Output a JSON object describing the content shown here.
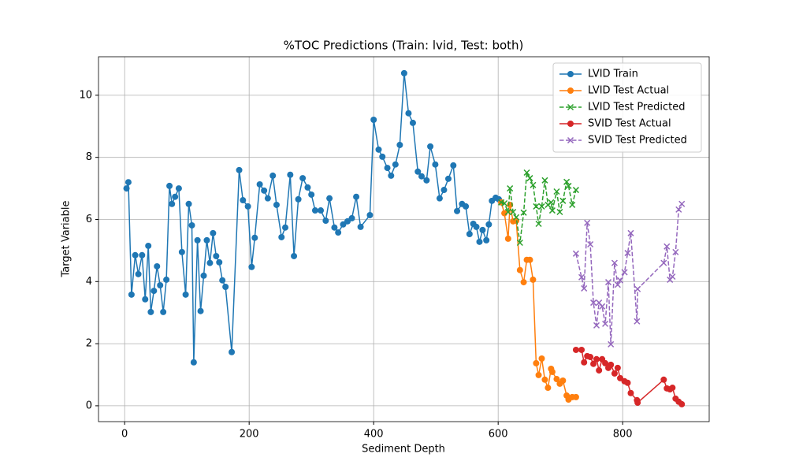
{
  "chart_data": {
    "type": "line",
    "title": "%TOC Predictions (Train: lvid, Test: both)",
    "xlabel": "Sediment Depth",
    "ylabel": "Target Variable",
    "xlim": [
      -42,
      939
    ],
    "ylim": [
      -0.51,
      11.24
    ],
    "xticks": [
      0,
      200,
      400,
      600,
      800
    ],
    "yticks": [
      0,
      2,
      4,
      6,
      8,
      10
    ],
    "grid": true,
    "legend": "upper right",
    "series": [
      {
        "name": "LVID Train",
        "color": "#1f77b4",
        "linestyle": "solid",
        "marker": "o",
        "x": [
          3,
          6,
          11,
          17,
          22,
          28,
          33,
          38,
          42,
          47,
          52,
          57,
          62,
          67,
          72,
          76,
          81,
          87,
          92,
          98,
          103,
          108,
          111,
          117,
          122,
          127,
          132,
          137,
          142,
          147,
          152,
          157,
          162,
          172,
          184,
          190,
          198,
          204,
          209,
          217,
          224,
          230,
          238,
          244,
          252,
          258,
          266,
          272,
          279,
          286,
          294,
          300,
          306,
          315,
          323,
          329,
          337,
          343,
          351,
          358,
          365,
          372,
          379,
          394,
          400,
          408,
          414,
          422,
          428,
          435,
          442,
          449,
          456,
          463,
          471,
          477,
          485,
          491,
          499,
          506,
          513,
          520,
          528,
          534,
          542,
          548,
          554,
          560,
          565,
          570,
          575,
          581,
          585,
          590,
          596,
          601
        ],
        "values": [
          7.0,
          7.2,
          3.58,
          4.85,
          4.24,
          4.85,
          3.43,
          5.15,
          3.02,
          3.7,
          4.49,
          3.88,
          3.02,
          4.06,
          7.08,
          6.5,
          6.73,
          7.0,
          4.95,
          3.58,
          6.5,
          5.81,
          1.4,
          5.33,
          3.05,
          4.19,
          5.33,
          4.6,
          5.56,
          4.82,
          4.62,
          4.04,
          3.83,
          1.73,
          7.59,
          6.62,
          6.42,
          4.47,
          5.41,
          7.13,
          6.93,
          6.68,
          7.41,
          6.47,
          5.43,
          5.74,
          7.44,
          4.82,
          6.65,
          7.33,
          7.03,
          6.8,
          6.29,
          6.29,
          5.96,
          6.68,
          5.74,
          5.58,
          5.84,
          5.94,
          6.04,
          6.73,
          5.76,
          6.14,
          9.21,
          8.25,
          8.02,
          7.66,
          7.41,
          7.77,
          8.4,
          10.71,
          9.42,
          9.11,
          7.54,
          7.39,
          7.26,
          8.35,
          7.77,
          6.68,
          6.95,
          7.31,
          7.74,
          6.27,
          6.5,
          6.42,
          5.53,
          5.86,
          5.76,
          5.28,
          5.66,
          5.33,
          5.84,
          6.6,
          6.7,
          6.65
        ]
      },
      {
        "name": "LVID Test Actual",
        "color": "#ff7f0e",
        "linestyle": "solid",
        "marker": "o",
        "x": [
          605,
          610,
          616,
          619,
          624,
          629,
          635,
          641,
          646,
          651,
          656,
          661,
          665,
          670,
          675,
          680,
          685,
          687,
          694,
          699,
          704,
          710,
          713,
          719,
          725
        ],
        "values": [
          6.55,
          6.2,
          5.38,
          6.47,
          5.94,
          5.96,
          4.37,
          3.98,
          4.7,
          4.7,
          4.06,
          1.37,
          0.99,
          1.52,
          0.84,
          0.58,
          1.19,
          1.09,
          0.86,
          0.71,
          0.81,
          0.33,
          0.2,
          0.28,
          0.28
        ]
      },
      {
        "name": "LVID Test Predicted",
        "color": "#2ca02c",
        "linestyle": "dashed",
        "marker": "x",
        "x": [
          605,
          610,
          616,
          619,
          624,
          629,
          635,
          641,
          646,
          651,
          656,
          661,
          665,
          670,
          675,
          680,
          685,
          687,
          694,
          699,
          704,
          710,
          713,
          719,
          725
        ],
        "values": [
          6.55,
          6.52,
          6.24,
          7.0,
          6.24,
          6.07,
          5.25,
          6.22,
          7.51,
          7.33,
          7.11,
          6.42,
          5.86,
          6.42,
          7.26,
          6.47,
          6.55,
          6.29,
          6.9,
          6.24,
          6.6,
          7.21,
          7.08,
          6.47,
          6.95
        ]
      },
      {
        "name": "SVID Test Actual",
        "color": "#d62728",
        "linestyle": "solid",
        "marker": "o",
        "x": [
          725,
          734,
          738,
          743,
          748,
          753,
          758,
          762,
          767,
          772,
          777,
          781,
          787,
          792,
          796,
          803,
          808,
          813,
          823,
          824,
          866,
          871,
          876,
          880,
          885,
          890,
          895
        ],
        "values": [
          1.8,
          1.8,
          1.4,
          1.6,
          1.57,
          1.35,
          1.5,
          1.14,
          1.5,
          1.37,
          1.22,
          1.32,
          1.04,
          1.22,
          0.89,
          0.79,
          0.74,
          0.41,
          0.18,
          0.1,
          0.84,
          0.56,
          0.53,
          0.58,
          0.23,
          0.13,
          0.05
        ]
      },
      {
        "name": "SVID Test Predicted",
        "color": "#9467bd",
        "linestyle": "dashed",
        "marker": "x",
        "x": [
          725,
          734,
          738,
          743,
          748,
          753,
          758,
          762,
          767,
          772,
          777,
          781,
          787,
          792,
          796,
          803,
          808,
          813,
          823,
          824,
          866,
          871,
          876,
          880,
          885,
          890,
          895
        ],
        "values": [
          4.9,
          4.14,
          3.78,
          5.89,
          5.2,
          3.32,
          2.59,
          3.32,
          3.2,
          2.64,
          3.98,
          1.98,
          4.6,
          3.9,
          4.04,
          4.3,
          4.92,
          5.56,
          2.72,
          3.76,
          4.6,
          5.13,
          4.06,
          4.16,
          4.95,
          6.32,
          6.5
        ]
      }
    ]
  }
}
